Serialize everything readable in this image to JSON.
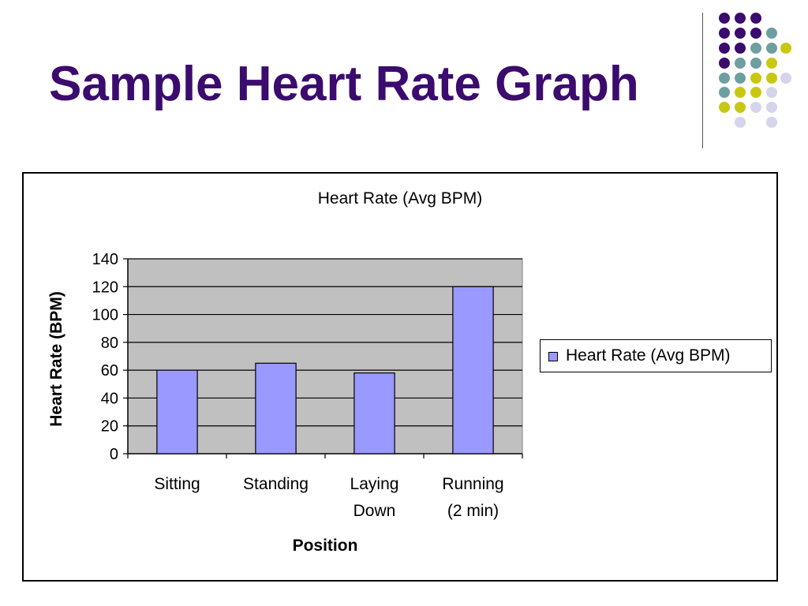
{
  "slide": {
    "title": "Sample Heart Rate Graph",
    "colors": {
      "title": "#3b0b6e",
      "dot_purple": "#3b0b6e",
      "dot_teal": "#6e9fa0",
      "dot_yellow": "#c8c813",
      "dot_lavender": "#d4d4ea"
    }
  },
  "chart_data": {
    "type": "bar",
    "title": "Heart Rate (Avg BPM)",
    "xlabel": "Position",
    "ylabel": "Heart Rate (BPM)",
    "categories": [
      "Sitting",
      "Standing",
      "Laying Down",
      "Running (2 min)"
    ],
    "category_lines": [
      [
        "Sitting"
      ],
      [
        "Standing"
      ],
      [
        "Laying",
        "Down"
      ],
      [
        "Running",
        "(2 min)"
      ]
    ],
    "series": [
      {
        "name": "Heart Rate (Avg BPM)",
        "values": [
          60,
          65,
          58,
          120
        ],
        "color": "#9999ff"
      }
    ],
    "ylim": [
      0,
      140
    ],
    "yticks": [
      0,
      20,
      40,
      60,
      80,
      100,
      120,
      140
    ],
    "grid": true,
    "plot_background": "#c0c0c0",
    "legend_position": "right"
  }
}
